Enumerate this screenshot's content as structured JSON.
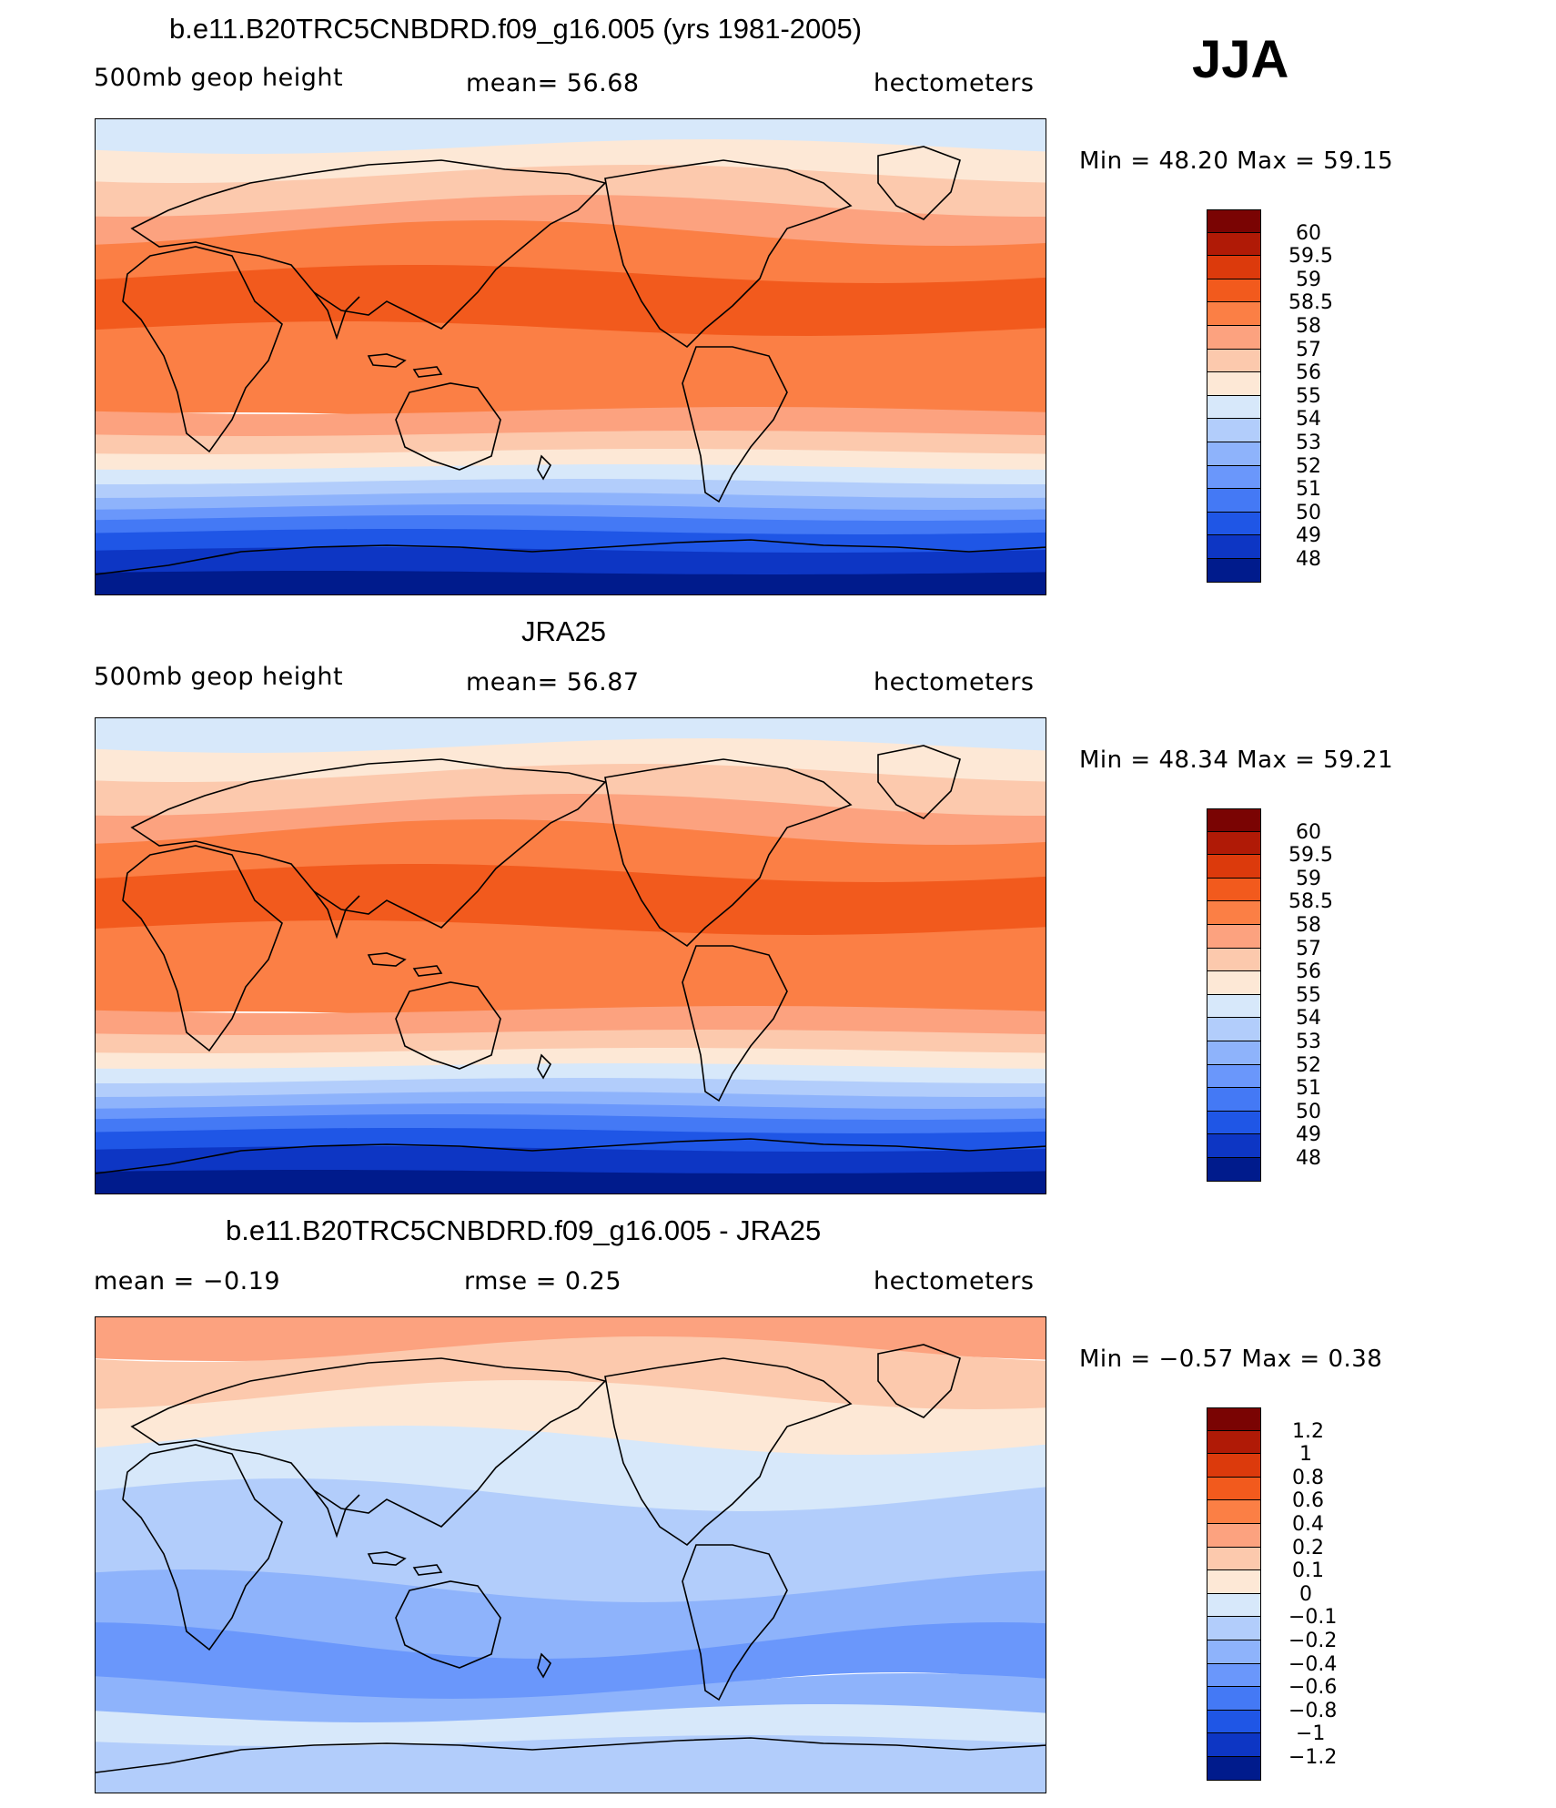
{
  "season": "JJA",
  "panels": [
    {
      "title": "b.e11.B20TRC5CNBDRD.f09_g16.005 (yrs 1981-2005)",
      "left_label": "500mb  geop  height",
      "center_label": "mean=   56.68",
      "right_label": "hectometers",
      "minmax": "Min  =    48.20  Max  =    59.15",
      "colorbar": {
        "labels": [
          "60",
          "59.5",
          "59",
          "58.5",
          "58",
          "57",
          "56",
          "55",
          "54",
          "53",
          "52",
          "51",
          "50",
          "49",
          "48"
        ],
        "colors": [
          "#7a0403",
          "#b01a06",
          "#dc3a0c",
          "#f25a1d",
          "#fb7f45",
          "#fca27f",
          "#fcc9ad",
          "#fde8d6",
          "#d7e8fa",
          "#b2cdfb",
          "#8eb3fb",
          "#6a97fb",
          "#4479f5",
          "#1f56e6",
          "#0d36c4",
          "#001b8c"
        ]
      }
    },
    {
      "title": "JRA25",
      "left_label": "500mb  geop  height",
      "center_label": "mean=   56.87",
      "right_label": "hectometers",
      "minmax": "Min  =    48.34  Max  =    59.21",
      "colorbar": {
        "labels": [
          "60",
          "59.5",
          "59",
          "58.5",
          "58",
          "57",
          "56",
          "55",
          "54",
          "53",
          "52",
          "51",
          "50",
          "49",
          "48"
        ],
        "colors": [
          "#7a0403",
          "#b01a06",
          "#dc3a0c",
          "#f25a1d",
          "#fb7f45",
          "#fca27f",
          "#fcc9ad",
          "#fde8d6",
          "#d7e8fa",
          "#b2cdfb",
          "#8eb3fb",
          "#6a97fb",
          "#4479f5",
          "#1f56e6",
          "#0d36c4",
          "#001b8c"
        ]
      }
    },
    {
      "title": "b.e11.B20TRC5CNBDRD.f09_g16.005 - JRA25",
      "left_label": "mean  =    −0.19",
      "center_label": "rmse  =     0.25",
      "right_label": "hectometers",
      "minmax": "Min  =   −0.57  Max  =     0.38",
      "colorbar": {
        "labels": [
          "1.2",
          "1",
          "0.8",
          "0.6",
          "0.4",
          "0.2",
          "0.1",
          "0",
          "−0.1",
          "−0.2",
          "−0.4",
          "−0.6",
          "−0.8",
          "−1",
          "−1.2"
        ],
        "colors": [
          "#7a0403",
          "#b01a06",
          "#dc3a0c",
          "#f25a1d",
          "#fb7f45",
          "#fca27f",
          "#fcc9ad",
          "#fde8d6",
          "#d7e8fa",
          "#b2cdfb",
          "#8eb3fb",
          "#6a97fb",
          "#4479f5",
          "#1f56e6",
          "#0d36c4",
          "#001b8c"
        ]
      }
    }
  ]
}
